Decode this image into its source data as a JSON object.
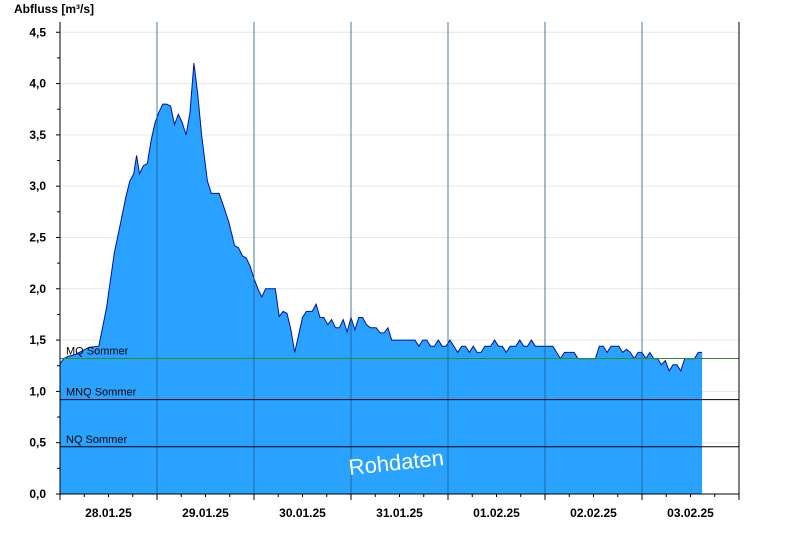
{
  "chart_data": {
    "type": "area",
    "ylabel": "Abfluss [m³/s]",
    "xlabel": "",
    "ylim": [
      0,
      4.6
    ],
    "yticks": [
      "0,0",
      "0,5",
      "1,0",
      "1,5",
      "2,0",
      "2,5",
      "3,0",
      "3,5",
      "4,0",
      "4,5"
    ],
    "ytick_values": [
      0,
      0.5,
      1.0,
      1.5,
      2.0,
      2.5,
      3.0,
      3.5,
      4.0,
      4.5
    ],
    "xlim_days": [
      0,
      7
    ],
    "xticks": [
      "28.01.25",
      "29.01.25",
      "30.01.25",
      "31.01.25",
      "01.02.25",
      "02.02.25",
      "03.02.25"
    ],
    "grid": true,
    "fill_color": "#29a3ff",
    "line_color": "#0010a0",
    "watermark": "Rohdaten",
    "reference_lines": [
      {
        "name": "MQ Sommer",
        "value": 1.32,
        "color": "#2e8b2e"
      },
      {
        "name": "MNQ Sommer",
        "value": 0.92,
        "color": "#000000"
      },
      {
        "name": "NQ Sommer",
        "value": 0.46,
        "color": "#000000"
      }
    ],
    "series": [
      {
        "values": [
          [
            0.0,
            1.27
          ],
          [
            0.04,
            1.32
          ],
          [
            0.08,
            1.34
          ],
          [
            0.16,
            1.36
          ],
          [
            0.24,
            1.4
          ],
          [
            0.3,
            1.43
          ],
          [
            0.4,
            1.44
          ],
          [
            0.48,
            1.82
          ],
          [
            0.56,
            2.35
          ],
          [
            0.62,
            2.62
          ],
          [
            0.68,
            2.9
          ],
          [
            0.72,
            3.05
          ],
          [
            0.76,
            3.12
          ],
          [
            0.79,
            3.3
          ],
          [
            0.82,
            3.12
          ],
          [
            0.86,
            3.2
          ],
          [
            0.9,
            3.22
          ],
          [
            0.94,
            3.45
          ],
          [
            0.98,
            3.62
          ],
          [
            1.02,
            3.72
          ],
          [
            1.06,
            3.8
          ],
          [
            1.1,
            3.8
          ],
          [
            1.14,
            3.78
          ],
          [
            1.18,
            3.6
          ],
          [
            1.22,
            3.7
          ],
          [
            1.26,
            3.62
          ],
          [
            1.3,
            3.5
          ],
          [
            1.34,
            3.72
          ],
          [
            1.38,
            4.2
          ],
          [
            1.42,
            3.9
          ],
          [
            1.46,
            3.5
          ],
          [
            1.52,
            3.05
          ],
          [
            1.56,
            2.93
          ],
          [
            1.6,
            2.93
          ],
          [
            1.64,
            2.93
          ],
          [
            1.68,
            2.82
          ],
          [
            1.74,
            2.65
          ],
          [
            1.8,
            2.42
          ],
          [
            1.84,
            2.4
          ],
          [
            1.88,
            2.32
          ],
          [
            1.92,
            2.3
          ],
          [
            1.96,
            2.22
          ],
          [
            2.0,
            2.1
          ],
          [
            2.04,
            2.0
          ],
          [
            2.08,
            1.92
          ],
          [
            2.12,
            2.0
          ],
          [
            2.18,
            2.0
          ],
          [
            2.22,
            2.0
          ],
          [
            2.26,
            1.73
          ],
          [
            2.3,
            1.78
          ],
          [
            2.34,
            1.76
          ],
          [
            2.38,
            1.6
          ],
          [
            2.42,
            1.38
          ],
          [
            2.46,
            1.55
          ],
          [
            2.5,
            1.72
          ],
          [
            2.54,
            1.78
          ],
          [
            2.6,
            1.78
          ],
          [
            2.64,
            1.85
          ],
          [
            2.68,
            1.72
          ],
          [
            2.72,
            1.72
          ],
          [
            2.76,
            1.65
          ],
          [
            2.8,
            1.7
          ],
          [
            2.84,
            1.62
          ],
          [
            2.88,
            1.62
          ],
          [
            2.92,
            1.7
          ],
          [
            2.96,
            1.58
          ],
          [
            3.0,
            1.72
          ],
          [
            3.04,
            1.6
          ],
          [
            3.08,
            1.72
          ],
          [
            3.12,
            1.72
          ],
          [
            3.16,
            1.65
          ],
          [
            3.2,
            1.62
          ],
          [
            3.26,
            1.62
          ],
          [
            3.3,
            1.57
          ],
          [
            3.34,
            1.57
          ],
          [
            3.38,
            1.62
          ],
          [
            3.42,
            1.5
          ],
          [
            3.5,
            1.5
          ],
          [
            3.6,
            1.5
          ],
          [
            3.66,
            1.5
          ],
          [
            3.7,
            1.44
          ],
          [
            3.74,
            1.5
          ],
          [
            3.78,
            1.5
          ],
          [
            3.82,
            1.44
          ],
          [
            3.86,
            1.44
          ],
          [
            3.9,
            1.5
          ],
          [
            3.94,
            1.44
          ],
          [
            3.98,
            1.44
          ],
          [
            4.02,
            1.5
          ],
          [
            4.06,
            1.44
          ],
          [
            4.1,
            1.38
          ],
          [
            4.14,
            1.44
          ],
          [
            4.18,
            1.44
          ],
          [
            4.22,
            1.38
          ],
          [
            4.26,
            1.44
          ],
          [
            4.3,
            1.38
          ],
          [
            4.34,
            1.38
          ],
          [
            4.38,
            1.44
          ],
          [
            4.44,
            1.44
          ],
          [
            4.48,
            1.5
          ],
          [
            4.52,
            1.44
          ],
          [
            4.56,
            1.44
          ],
          [
            4.6,
            1.38
          ],
          [
            4.64,
            1.44
          ],
          [
            4.7,
            1.44
          ],
          [
            4.74,
            1.5
          ],
          [
            4.78,
            1.44
          ],
          [
            4.82,
            1.44
          ],
          [
            4.86,
            1.5
          ],
          [
            4.9,
            1.44
          ],
          [
            4.96,
            1.44
          ],
          [
            5.02,
            1.44
          ],
          [
            5.08,
            1.44
          ],
          [
            5.12,
            1.38
          ],
          [
            5.16,
            1.32
          ],
          [
            5.2,
            1.38
          ],
          [
            5.3,
            1.38
          ],
          [
            5.34,
            1.32
          ],
          [
            5.44,
            1.32
          ],
          [
            5.52,
            1.32
          ],
          [
            5.56,
            1.44
          ],
          [
            5.6,
            1.44
          ],
          [
            5.64,
            1.38
          ],
          [
            5.68,
            1.44
          ],
          [
            5.76,
            1.44
          ],
          [
            5.8,
            1.38
          ],
          [
            5.84,
            1.41
          ],
          [
            5.88,
            1.38
          ],
          [
            5.92,
            1.32
          ],
          [
            5.96,
            1.38
          ],
          [
            6.0,
            1.38
          ],
          [
            6.04,
            1.32
          ],
          [
            6.08,
            1.38
          ],
          [
            6.12,
            1.32
          ],
          [
            6.16,
            1.32
          ],
          [
            6.2,
            1.26
          ],
          [
            6.24,
            1.3
          ],
          [
            6.28,
            1.2
          ],
          [
            6.32,
            1.26
          ],
          [
            6.36,
            1.26
          ],
          [
            6.4,
            1.2
          ],
          [
            6.44,
            1.32
          ],
          [
            6.5,
            1.32
          ],
          [
            6.54,
            1.32
          ],
          [
            6.58,
            1.38
          ],
          [
            6.62,
            1.38
          ]
        ]
      }
    ]
  }
}
